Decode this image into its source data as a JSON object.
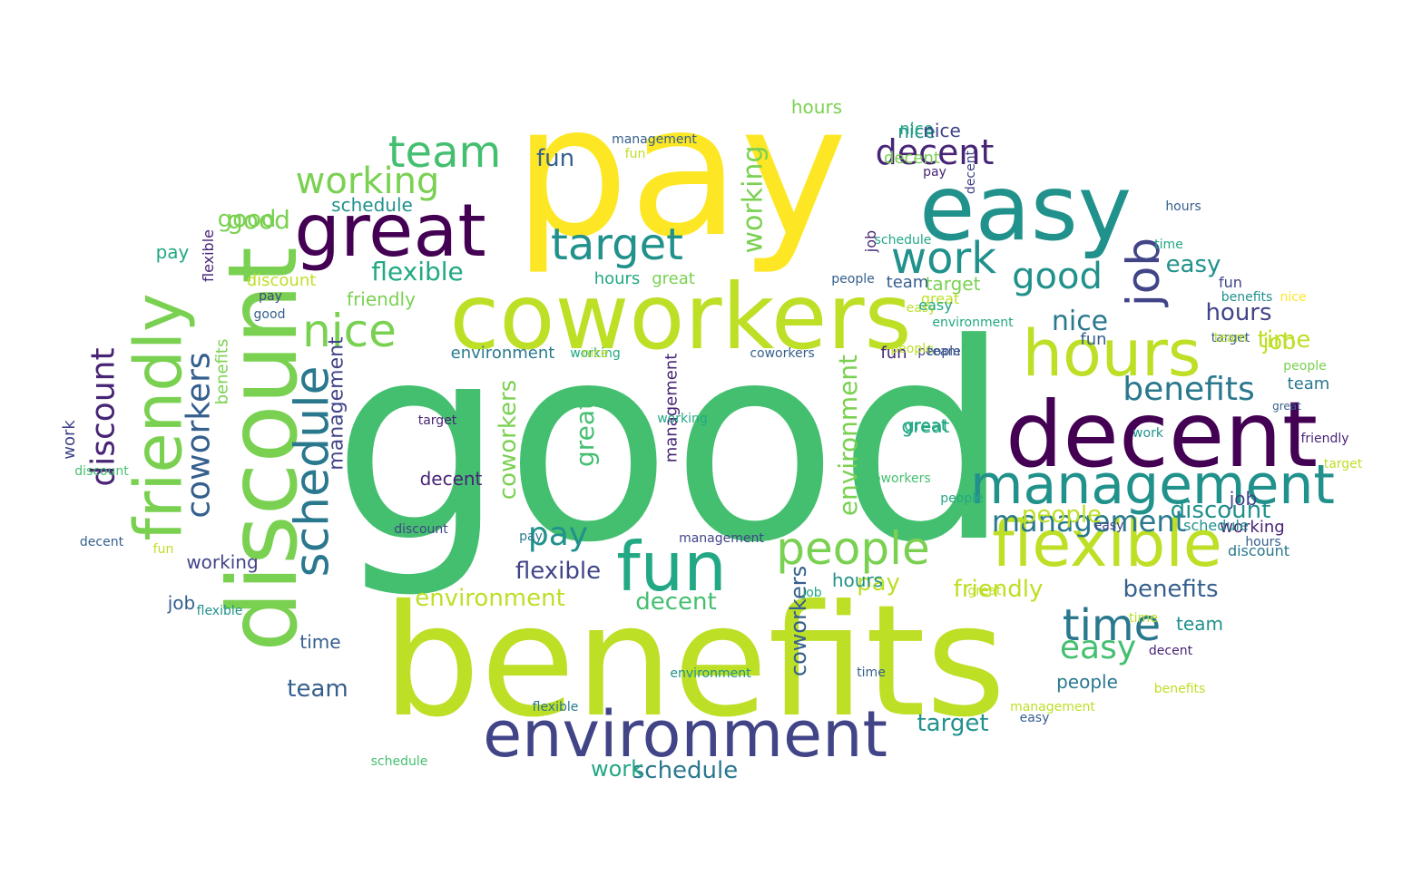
{
  "palette": {
    "yellow": "#fde725",
    "lime": "#bddf26",
    "green": "#7ad151",
    "emerald": "#44bf70",
    "teal": "#22a884",
    "tealdark": "#21918c",
    "blue": "#2a788e",
    "slate": "#355f8d",
    "indigo": "#414487",
    "purple": "#482475",
    "violet": "#440154"
  },
  "words": [
    {
      "text": "good",
      "color": "emerald",
      "rotate": false
    },
    {
      "text": "pay",
      "color": "yellow",
      "rotate": false
    },
    {
      "text": "benefits",
      "color": "lime",
      "rotate": false
    },
    {
      "text": "discount",
      "color": "green",
      "rotate": true
    },
    {
      "text": "coworkers",
      "color": "lime",
      "rotate": false
    },
    {
      "text": "decent",
      "color": "violet",
      "rotate": false
    },
    {
      "text": "easy",
      "color": "tealdark",
      "rotate": false
    },
    {
      "text": "great",
      "color": "violet",
      "rotate": false
    },
    {
      "text": "friendly",
      "color": "green",
      "rotate": true
    },
    {
      "text": "environment",
      "color": "indigo",
      "rotate": false
    },
    {
      "text": "flexible",
      "color": "lime",
      "rotate": false
    },
    {
      "text": "hours",
      "color": "lime",
      "rotate": false
    },
    {
      "text": "management",
      "color": "tealdark",
      "rotate": false
    },
    {
      "text": "fun",
      "color": "teal",
      "rotate": false
    },
    {
      "text": "schedule",
      "color": "blue",
      "rotate": true
    },
    {
      "text": "job",
      "color": "indigo",
      "rotate": true
    },
    {
      "text": "people",
      "color": "green",
      "rotate": false
    },
    {
      "text": "nice",
      "color": "green",
      "rotate": false
    },
    {
      "text": "team",
      "color": "emerald",
      "rotate": false
    },
    {
      "text": "target",
      "color": "tealdark",
      "rotate": false
    },
    {
      "text": "work",
      "color": "tealdark",
      "rotate": false
    },
    {
      "text": "time",
      "color": "blue",
      "rotate": false
    },
    {
      "text": "working",
      "color": "green",
      "rotate": false
    },
    {
      "text": "decent",
      "color": "purple",
      "rotate": false
    },
    {
      "text": "good",
      "color": "tealdark",
      "rotate": false
    },
    {
      "text": "coworkers",
      "color": "slate",
      "rotate": true
    },
    {
      "text": "discount",
      "color": "purple",
      "rotate": true
    },
    {
      "text": "benefits",
      "color": "blue",
      "rotate": false
    },
    {
      "text": "pay",
      "color": "tealdark",
      "rotate": false
    },
    {
      "text": "nice",
      "color": "blue",
      "rotate": false
    },
    {
      "text": "management",
      "color": "blue",
      "rotate": false
    },
    {
      "text": "easy",
      "color": "emerald",
      "rotate": false
    },
    {
      "text": "flexible",
      "color": "indigo",
      "rotate": false
    },
    {
      "text": "environment",
      "color": "lime",
      "rotate": false
    },
    {
      "text": "people",
      "color": "lime",
      "rotate": false
    },
    {
      "text": "decent",
      "color": "emerald",
      "rotate": false
    },
    {
      "text": "friendly",
      "color": "lime",
      "rotate": false
    },
    {
      "text": "benefits",
      "color": "slate",
      "rotate": false
    },
    {
      "text": "coworkers",
      "color": "green",
      "rotate": true
    },
    {
      "text": "flexible",
      "color": "teal",
      "rotate": false
    },
    {
      "text": "target",
      "color": "tealdark",
      "rotate": false
    },
    {
      "text": "discount",
      "color": "tealdark",
      "rotate": false
    },
    {
      "text": "time",
      "color": "lime",
      "rotate": false
    },
    {
      "text": "hours",
      "color": "indigo",
      "rotate": false
    },
    {
      "text": "team",
      "color": "slate",
      "rotate": false
    },
    {
      "text": "job",
      "color": "lime",
      "rotate": false
    },
    {
      "text": "easy",
      "color": "tealdark",
      "rotate": false
    },
    {
      "text": "working",
      "color": "green",
      "rotate": true
    },
    {
      "text": "management",
      "color": "indigo",
      "rotate": true
    },
    {
      "text": "schedule",
      "color": "tealdark",
      "rotate": false
    },
    {
      "text": "pay",
      "color": "lime",
      "rotate": false
    },
    {
      "text": "good",
      "color": "green",
      "rotate": false
    },
    {
      "text": "target",
      "color": "green",
      "rotate": false
    },
    {
      "text": "people",
      "color": "blue",
      "rotate": false
    },
    {
      "text": "nice",
      "color": "tealdark",
      "rotate": false
    },
    {
      "text": "schedule",
      "color": "blue",
      "rotate": false
    },
    {
      "text": "environment",
      "color": "green",
      "rotate": true
    },
    {
      "text": "great",
      "color": "emerald",
      "rotate": true
    },
    {
      "text": "coworkers",
      "color": "slate",
      "rotate": true
    },
    {
      "text": "friendly",
      "color": "green",
      "rotate": false
    },
    {
      "text": "decent",
      "color": "purple",
      "rotate": false
    },
    {
      "text": "work",
      "color": "teal",
      "rotate": false
    },
    {
      "text": "schedule",
      "color": "teal",
      "rotate": false
    },
    {
      "text": "management",
      "color": "purple",
      "rotate": true
    },
    {
      "text": "benefits",
      "color": "green",
      "rotate": true
    },
    {
      "text": "discount",
      "color": "lime",
      "rotate": false
    },
    {
      "text": "hours",
      "color": "teal",
      "rotate": false
    },
    {
      "text": "great",
      "color": "green",
      "rotate": false
    },
    {
      "text": "good",
      "color": "green",
      "rotate": false
    },
    {
      "text": "pay",
      "color": "teal",
      "rotate": false
    },
    {
      "text": "flexible",
      "color": "purple",
      "rotate": true
    },
    {
      "text": "fun",
      "color": "slate",
      "rotate": false
    },
    {
      "text": "working",
      "color": "indigo",
      "rotate": false
    },
    {
      "text": "job",
      "color": "slate",
      "rotate": false
    },
    {
      "text": "time",
      "color": "slate",
      "rotate": false
    },
    {
      "text": "team",
      "color": "slate",
      "rotate": false
    },
    {
      "text": "pay",
      "color": "blue",
      "rotate": false
    },
    {
      "text": "environment",
      "color": "blue",
      "rotate": false
    },
    {
      "text": "great",
      "color": "lime",
      "rotate": false
    },
    {
      "text": "hours",
      "color": "tealdark",
      "rotate": false
    },
    {
      "text": "job",
      "color": "indigo",
      "rotate": false
    },
    {
      "text": "fun",
      "color": "indigo",
      "rotate": false
    },
    {
      "text": "easy",
      "color": "lime",
      "rotate": false
    },
    {
      "text": "great",
      "color": "teal",
      "rotate": false
    },
    {
      "text": "nice",
      "color": "teal",
      "rotate": false
    },
    {
      "text": "fun",
      "color": "slate",
      "rotate": false
    },
    {
      "text": "great",
      "color": "lime",
      "rotate": false
    },
    {
      "text": "working",
      "color": "purple",
      "rotate": false
    },
    {
      "text": "time",
      "color": "lime",
      "rotate": false
    },
    {
      "text": "discount",
      "color": "blue",
      "rotate": false
    },
    {
      "text": "decent",
      "color": "green",
      "rotate": false
    },
    {
      "text": "decent",
      "color": "purple",
      "rotate": false
    },
    {
      "text": "work",
      "color": "tealdark",
      "rotate": false
    },
    {
      "text": "benefits",
      "color": "tealdark",
      "rotate": false
    },
    {
      "text": "schedule",
      "color": "tealdark",
      "rotate": false
    },
    {
      "text": "easy",
      "color": "indigo",
      "rotate": false
    },
    {
      "text": "people",
      "color": "indigo",
      "rotate": false
    },
    {
      "text": "fun",
      "color": "purple",
      "rotate": false
    },
    {
      "text": "target",
      "color": "slate",
      "rotate": false
    },
    {
      "text": "management",
      "color": "indigo",
      "rotate": false
    },
    {
      "text": "job",
      "color": "purple",
      "rotate": true
    },
    {
      "text": "working",
      "color": "teal",
      "rotate": false
    },
    {
      "text": "people",
      "color": "slate",
      "rotate": false
    },
    {
      "text": "coworkers",
      "color": "slate",
      "rotate": false
    },
    {
      "text": "team",
      "color": "blue",
      "rotate": false
    },
    {
      "text": "nice",
      "color": "indigo",
      "rotate": false
    },
    {
      "text": "discount",
      "color": "indigo",
      "rotate": false
    },
    {
      "text": "hours",
      "color": "slate",
      "rotate": false
    },
    {
      "text": "management",
      "color": "slate",
      "rotate": false
    },
    {
      "text": "work",
      "color": "indigo",
      "rotate": true
    },
    {
      "text": "decent",
      "color": "slate",
      "rotate": false
    },
    {
      "text": "flexible",
      "color": "tealdark",
      "rotate": false
    },
    {
      "text": "friendly",
      "color": "purple",
      "rotate": false
    },
    {
      "text": "pay",
      "color": "indigo",
      "rotate": false
    },
    {
      "text": "target",
      "color": "purple",
      "rotate": false
    },
    {
      "text": "hours",
      "color": "green",
      "rotate": false
    },
    {
      "text": "people",
      "color": "green",
      "rotate": false
    },
    {
      "text": "team",
      "color": "tealdark",
      "rotate": false
    },
    {
      "text": "great",
      "color": "teal",
      "rotate": false
    },
    {
      "text": "easy",
      "color": "teal",
      "rotate": false
    },
    {
      "text": "fun",
      "color": "lime",
      "rotate": false
    },
    {
      "text": "good",
      "color": "slate",
      "rotate": false
    },
    {
      "text": "nice",
      "color": "lime",
      "rotate": false
    },
    {
      "text": "working",
      "color": "teal",
      "rotate": false
    },
    {
      "text": "people",
      "color": "lime",
      "rotate": false
    },
    {
      "text": "environment",
      "color": "teal",
      "rotate": false
    },
    {
      "text": "environment",
      "color": "tealdark",
      "rotate": false
    },
    {
      "text": "time",
      "color": "slate",
      "rotate": false
    },
    {
      "text": "team",
      "color": "lime",
      "rotate": false
    },
    {
      "text": "job",
      "color": "teal",
      "rotate": false
    },
    {
      "text": "great",
      "color": "slate",
      "rotate": false
    },
    {
      "text": "hours",
      "color": "slate",
      "rotate": false
    },
    {
      "text": "pay",
      "color": "purple",
      "rotate": false
    },
    {
      "text": "benefits",
      "color": "lime",
      "rotate": false
    },
    {
      "text": "schedule",
      "color": "emerald",
      "rotate": false
    },
    {
      "text": "coworkers",
      "color": "emerald",
      "rotate": false
    },
    {
      "text": "flexible",
      "color": "blue",
      "rotate": false
    },
    {
      "text": "easy",
      "color": "slate",
      "rotate": false
    },
    {
      "text": "target",
      "color": "lime",
      "rotate": false
    },
    {
      "text": "decent",
      "color": "indigo",
      "rotate": true
    },
    {
      "text": "discount",
      "color": "emerald",
      "rotate": false
    },
    {
      "text": "nice",
      "color": "yellow",
      "rotate": false
    },
    {
      "text": "fun",
      "color": "lime",
      "rotate": false
    },
    {
      "text": "people",
      "color": "teal",
      "rotate": false
    },
    {
      "text": "team",
      "color": "slate",
      "rotate": false
    },
    {
      "text": "time",
      "color": "teal",
      "rotate": false
    },
    {
      "text": "management",
      "color": "lime",
      "rotate": false
    }
  ]
}
